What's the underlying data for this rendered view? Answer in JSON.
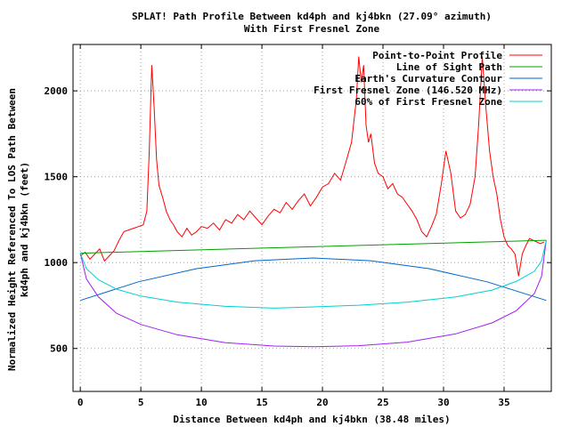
{
  "chart_data": {
    "type": "line",
    "title": "SPLAT! Path Profile Between kd4ph and kj4bkn (27.09° azimuth)",
    "subtitle": "With First Fresnel Zone",
    "xlabel": "Distance Between kd4ph and kj4bkn (38.48 miles)",
    "ylabel_line1": "Normalized Height Referenced To LOS Path Between",
    "ylabel_line2": "kd4ph and kj4bkn (feet)",
    "xlim": [
      -0.6,
      38.9
    ],
    "ylim": [
      250,
      2270
    ],
    "x_ticks": [
      0,
      5,
      10,
      15,
      20,
      25,
      30,
      35
    ],
    "y_ticks": [
      500,
      1000,
      1500,
      2000
    ],
    "grid": true,
    "legend_position": "top-right",
    "series": [
      {
        "name": "Point-to-Point Profile",
        "color": "#ff0000",
        "x": [
          0,
          0.4,
          0.8,
          1.2,
          1.6,
          2.0,
          2.4,
          2.8,
          3.2,
          3.6,
          4.0,
          4.4,
          4.8,
          5.2,
          5.5,
          5.7,
          5.9,
          6.1,
          6.3,
          6.5,
          6.8,
          7.1,
          7.4,
          7.7,
          8.0,
          8.4,
          8.8,
          9.2,
          9.6,
          10.0,
          10.5,
          11.0,
          11.5,
          12.0,
          12.5,
          13.0,
          13.5,
          14.0,
          14.5,
          15.0,
          15.5,
          16.0,
          16.5,
          17.0,
          17.5,
          18.0,
          18.5,
          19.0,
          19.5,
          20.0,
          20.5,
          21.0,
          21.5,
          22.0,
          22.4,
          22.8,
          23.0,
          23.2,
          23.4,
          23.6,
          23.8,
          24.0,
          24.3,
          24.6,
          25.0,
          25.4,
          25.8,
          26.2,
          26.6,
          27.0,
          27.4,
          27.8,
          28.2,
          28.6,
          29.0,
          29.4,
          29.8,
          30.2,
          30.6,
          31.0,
          31.4,
          31.8,
          32.2,
          32.6,
          32.9,
          33.2,
          33.5,
          33.8,
          34.1,
          34.4,
          34.7,
          35.0,
          35.3,
          35.6,
          35.9,
          36.2,
          36.5,
          36.8,
          37.1,
          37.4,
          37.7,
          38.0,
          38.3
        ],
        "values": [
          1040,
          1060,
          1020,
          1050,
          1080,
          1010,
          1040,
          1070,
          1130,
          1180,
          1190,
          1200,
          1210,
          1220,
          1300,
          1650,
          2150,
          1900,
          1600,
          1450,
          1380,
          1300,
          1250,
          1220,
          1180,
          1150,
          1200,
          1160,
          1180,
          1210,
          1200,
          1230,
          1190,
          1250,
          1230,
          1280,
          1250,
          1300,
          1260,
          1220,
          1270,
          1310,
          1290,
          1350,
          1310,
          1360,
          1400,
          1330,
          1380,
          1440,
          1460,
          1520,
          1480,
          1600,
          1700,
          1950,
          2200,
          2050,
          2150,
          1800,
          1700,
          1750,
          1580,
          1520,
          1500,
          1430,
          1460,
          1400,
          1380,
          1340,
          1300,
          1250,
          1180,
          1150,
          1210,
          1280,
          1450,
          1650,
          1520,
          1300,
          1260,
          1280,
          1340,
          1500,
          1800,
          2200,
          1900,
          1650,
          1500,
          1400,
          1250,
          1150,
          1100,
          1080,
          1050,
          920,
          1050,
          1100,
          1140,
          1130,
          1120,
          1110,
          1120
        ]
      },
      {
        "name": "Line of Sight Path",
        "color": "#00a000",
        "x": [
          0,
          38.48
        ],
        "values": [
          1055,
          1130
        ]
      },
      {
        "name": "Earth's Curvature Contour",
        "color": "#0066cc",
        "x": [
          0,
          4.8,
          9.6,
          14.4,
          19.24,
          24.0,
          28.8,
          33.6,
          38.48
        ],
        "values": [
          780,
          888,
          965,
          1011,
          1027,
          1011,
          965,
          888,
          780
        ]
      },
      {
        "name": "First Fresnel Zone (146.520 MHz)",
        "color": "#a020f0",
        "x": [
          0,
          0.5,
          1.5,
          3,
          5,
          8,
          12,
          16,
          19.24,
          23,
          27,
          31,
          34,
          36,
          37.5,
          38.1,
          38.48
        ],
        "values": [
          1055,
          905,
          800,
          705,
          640,
          580,
          534,
          514,
          510,
          516,
          537,
          585,
          649,
          720,
          820,
          920,
          1130
        ]
      },
      {
        "name": "60% of First Fresnel Zone",
        "color": "#00d0d0",
        "x": [
          0,
          0.5,
          1.5,
          3,
          5,
          8,
          12,
          16,
          19.24,
          23,
          27,
          31,
          34,
          36,
          37.5,
          38.1,
          38.48
        ],
        "values": [
          1055,
          965,
          900,
          845,
          805,
          770,
          745,
          735,
          742,
          752,
          770,
          800,
          840,
          890,
          950,
          1010,
          1130
        ]
      }
    ]
  }
}
